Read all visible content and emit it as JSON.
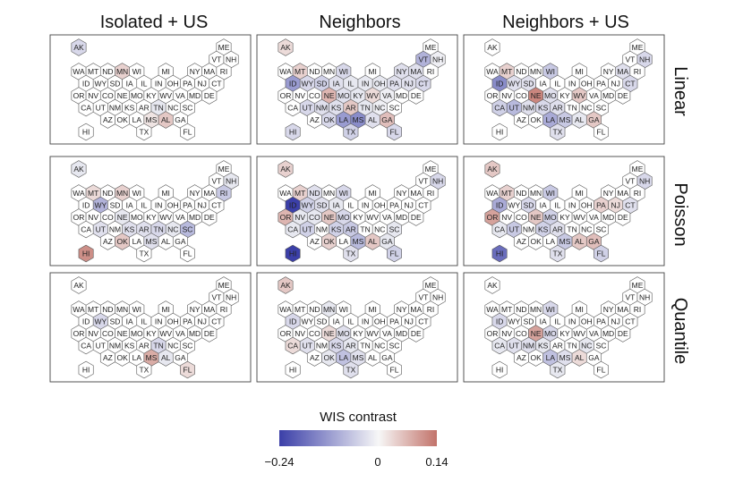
{
  "chart_data": {
    "type": "heatmap",
    "columns": [
      "Isolated + US",
      "Neighbors",
      "Neighbors + US"
    ],
    "rows": [
      "Linear",
      "Poisson",
      "Quantile"
    ],
    "legend": {
      "title": "WIS contrast",
      "min": -0.24,
      "mid": 0,
      "max": 0.14,
      "ticks": [
        "−0.24",
        "0",
        "0.14"
      ],
      "colors": {
        "low": "#3b3fa8",
        "mid": "#f7f7f7",
        "high": "#c2736a"
      }
    },
    "states": [
      {
        "id": "AK",
        "col": 0,
        "row": 0
      },
      {
        "id": "ME",
        "col": 10,
        "row": 0
      },
      {
        "id": "VT",
        "col": 9,
        "row": 1
      },
      {
        "id": "NH",
        "col": 10,
        "row": 1
      },
      {
        "id": "WA",
        "col": 0,
        "row": 2
      },
      {
        "id": "MT",
        "col": 1,
        "row": 2
      },
      {
        "id": "ND",
        "col": 2,
        "row": 2
      },
      {
        "id": "MN",
        "col": 3,
        "row": 2
      },
      {
        "id": "WI",
        "col": 4,
        "row": 2
      },
      {
        "id": "MI",
        "col": 6,
        "row": 2
      },
      {
        "id": "NY",
        "col": 8,
        "row": 2
      },
      {
        "id": "MA",
        "col": 9,
        "row": 2
      },
      {
        "id": "RI",
        "col": 10,
        "row": 2
      },
      {
        "id": "ID",
        "col": 0,
        "row": 3
      },
      {
        "id": "WY",
        "col": 1,
        "row": 3
      },
      {
        "id": "SD",
        "col": 2,
        "row": 3
      },
      {
        "id": "IA",
        "col": 3,
        "row": 3
      },
      {
        "id": "IL",
        "col": 4,
        "row": 3
      },
      {
        "id": "IN",
        "col": 5,
        "row": 3
      },
      {
        "id": "OH",
        "col": 6,
        "row": 3
      },
      {
        "id": "PA",
        "col": 7,
        "row": 3
      },
      {
        "id": "NJ",
        "col": 8,
        "row": 3
      },
      {
        "id": "CT",
        "col": 9,
        "row": 3
      },
      {
        "id": "OR",
        "col": 0,
        "row": 4
      },
      {
        "id": "NV",
        "col": 1,
        "row": 4
      },
      {
        "id": "CO",
        "col": 2,
        "row": 4
      },
      {
        "id": "NE",
        "col": 3,
        "row": 4
      },
      {
        "id": "MO",
        "col": 4,
        "row": 4
      },
      {
        "id": "KY",
        "col": 5,
        "row": 4
      },
      {
        "id": "WV",
        "col": 6,
        "row": 4
      },
      {
        "id": "VA",
        "col": 7,
        "row": 4
      },
      {
        "id": "MD",
        "col": 8,
        "row": 4
      },
      {
        "id": "DE",
        "col": 9,
        "row": 4
      },
      {
        "id": "CA",
        "col": 0,
        "row": 5
      },
      {
        "id": "UT",
        "col": 1,
        "row": 5
      },
      {
        "id": "NM",
        "col": 2,
        "row": 5
      },
      {
        "id": "KS",
        "col": 3,
        "row": 5
      },
      {
        "id": "AR",
        "col": 4,
        "row": 5
      },
      {
        "id": "TN",
        "col": 5,
        "row": 5
      },
      {
        "id": "NC",
        "col": 6,
        "row": 5
      },
      {
        "id": "SC",
        "col": 7,
        "row": 5
      },
      {
        "id": "AZ",
        "col": 2,
        "row": 6
      },
      {
        "id": "OK",
        "col": 3,
        "row": 6
      },
      {
        "id": "LA",
        "col": 4,
        "row": 6
      },
      {
        "id": "MS",
        "col": 5,
        "row": 6
      },
      {
        "id": "AL",
        "col": 6,
        "row": 6
      },
      {
        "id": "GA",
        "col": 7,
        "row": 6
      },
      {
        "id": "HI",
        "col": 0,
        "row": 7
      },
      {
        "id": "TX",
        "col": 4,
        "row": 7
      },
      {
        "id": "FL",
        "col": 7,
        "row": 7
      }
    ],
    "panels": [
      {
        "row": "Linear",
        "col": "Isolated + US",
        "values": {
          "AK": -0.04,
          "MN": 0.04,
          "AL": 0.05,
          "TN": -0.02,
          "MS": 0.02
        }
      },
      {
        "row": "Linear",
        "col": "Neighbors",
        "values": {
          "AK": 0.03,
          "VT": -0.09,
          "NH": -0.01,
          "MT": 0.04,
          "WI": -0.04,
          "NY": -0.03,
          "MA": -0.03,
          "ID": -0.12,
          "WY": -0.04,
          "SD": -0.05,
          "IA": -0.03,
          "IL": -0.02,
          "IN": -0.02,
          "OH": -0.02,
          "PA": -0.03,
          "NJ": -0.03,
          "CT": -0.04,
          "NE": 0.07,
          "MO": -0.03,
          "KY": -0.02,
          "WV": 0.03,
          "VA": -0.01,
          "UT": -0.04,
          "NM": -0.03,
          "KS": -0.03,
          "AR": 0.05,
          "TN": -0.02,
          "NC": -0.01,
          "OK": -0.04,
          "LA": -0.12,
          "MS": -0.14,
          "AL": -0.03,
          "GA": 0.06,
          "HI": -0.04,
          "TX": -0.05,
          "FL": -0.04
        }
      },
      {
        "row": "Linear",
        "col": "Neighbors + US",
        "values": {
          "NH": -0.04,
          "MT": 0.04,
          "WI": -0.06,
          "MA": -0.03,
          "ID": -0.14,
          "WY": -0.03,
          "SD": -0.03,
          "CT": -0.04,
          "NE": 0.12,
          "MO": -0.03,
          "WV": 0.05,
          "CA": -0.05,
          "UT": -0.08,
          "NM": -0.03,
          "KS": -0.04,
          "AR": -0.03,
          "LA": -0.1,
          "MS": -0.06,
          "AL": -0.02,
          "GA": 0.05,
          "TX": -0.03
        }
      },
      {
        "row": "Poisson",
        "col": "Isolated + US",
        "values": {
          "AK": -0.02,
          "NH": -0.02,
          "MT": 0.03,
          "MN": 0.04,
          "RI": -0.06,
          "WY": -0.09,
          "NE": -0.02,
          "UT": -0.03,
          "KS": -0.03,
          "AR": -0.03,
          "TN": -0.04,
          "NC": -0.02,
          "SC": -0.08,
          "OK": 0.05,
          "MS": -0.03,
          "HI": 0.11
        }
      },
      {
        "row": "Poisson",
        "col": "Neighbors",
        "values": {
          "AK": 0.04,
          "NH": -0.04,
          "MT": 0.04,
          "WI": -0.04,
          "ND": -0.03,
          "ID": -0.24,
          "WY": -0.05,
          "SD": -0.03,
          "IA": -0.02,
          "OR": 0.07,
          "NV": -0.02,
          "CO": -0.02,
          "NE": 0.05,
          "MO": -0.04,
          "KS": -0.05,
          "AR": -0.06,
          "UT": -0.05,
          "CA": -0.02,
          "MS": -0.08,
          "AL": 0.05,
          "GA": -0.02,
          "OK": 0.04,
          "HI": -0.24,
          "FL": -0.05,
          "TX": -0.03,
          "SC": -0.02
        }
      },
      {
        "row": "Poisson",
        "col": "Neighbors + US",
        "values": {
          "AK": 0.05,
          "NH": -0.04,
          "MT": 0.04,
          "WI": -0.06,
          "ID": -0.1,
          "SD": -0.04,
          "OR": 0.09,
          "NE": 0.05,
          "MO": -0.05,
          "KS": -0.05,
          "UT": -0.06,
          "CA": -0.02,
          "AR": -0.03,
          "MS": -0.06,
          "AL": 0.05,
          "GA": 0.06,
          "PA": 0.04,
          "NJ": 0.03,
          "HI": -0.18,
          "TX": -0.03,
          "FL": -0.05,
          "CT": -0.03
        }
      },
      {
        "row": "Quantile",
        "col": "Isolated + US",
        "values": {
          "WY": -0.04,
          "TN": -0.04,
          "MS": 0.08,
          "FL": 0.03,
          "AL": -0.02
        }
      },
      {
        "row": "Quantile",
        "col": "Neighbors",
        "values": {
          "AK": 0.05,
          "ID": -0.04,
          "MN": -0.02,
          "NE": 0.03,
          "MO": -0.03,
          "CA": 0.03,
          "UT": -0.03,
          "KS": -0.04,
          "AR": -0.02,
          "LA": -0.07,
          "MS": -0.03,
          "TX": -0.03,
          "OK": -0.02
        }
      },
      {
        "row": "Quantile",
        "col": "Neighbors + US",
        "values": {
          "ID": -0.04,
          "WI": -0.04,
          "NE": 0.09,
          "MO": -0.04,
          "UT": -0.03,
          "CA": -0.02,
          "NM": -0.03,
          "LA": -0.07,
          "MS": -0.03,
          "AL": 0.03,
          "KS": -0.02,
          "TX": -0.02,
          "NC": -0.02
        }
      }
    ]
  }
}
